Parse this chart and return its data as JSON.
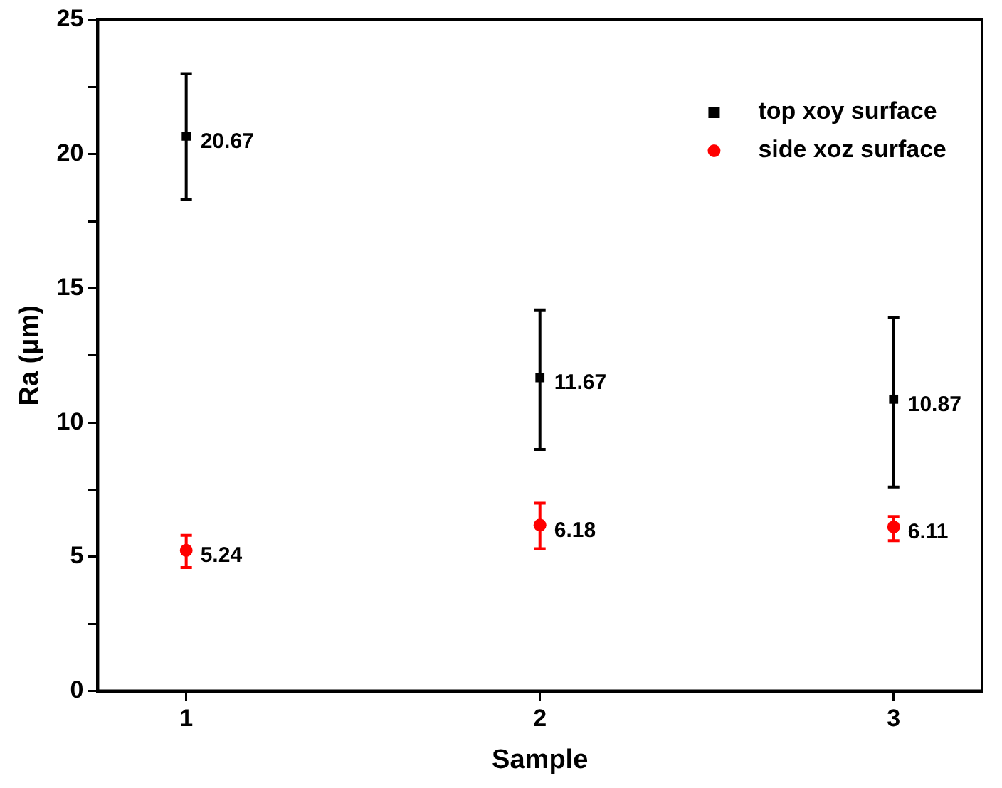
{
  "chart_data": {
    "type": "scatter",
    "xlabel": "Sample",
    "ylabel": "Ra (μm)",
    "x": [
      1,
      2,
      3
    ],
    "series": [
      {
        "name": "top xoy surface",
        "color": "#000000",
        "marker": "square",
        "values": [
          20.67,
          11.67,
          10.87
        ],
        "errors": [
          [
            18.3,
            23.0
          ],
          [
            9.0,
            14.2
          ],
          [
            7.6,
            13.9
          ]
        ]
      },
      {
        "name": "side xoz surface",
        "color": "#ff0000",
        "marker": "circle",
        "values": [
          5.24,
          6.18,
          6.11
        ],
        "errors": [
          [
            4.6,
            5.8
          ],
          [
            5.3,
            7.0
          ],
          [
            5.6,
            6.5
          ]
        ]
      }
    ],
    "xlim": [
      0.75,
      3.25
    ],
    "xticks": [
      1,
      2,
      3
    ],
    "ylim": [
      0,
      25
    ],
    "yticks": [
      0,
      {
        "value": 2.5,
        "label": null
      },
      5,
      {
        "value": 7.5,
        "label": null
      },
      10,
      {
        "value": 12.5,
        "label": null
      },
      15,
      {
        "value": 17.5,
        "label": null
      },
      20,
      {
        "value": 22.5,
        "label": null
      },
      25
    ],
    "grid": false,
    "legend": "top right",
    "data_labels": true
  }
}
